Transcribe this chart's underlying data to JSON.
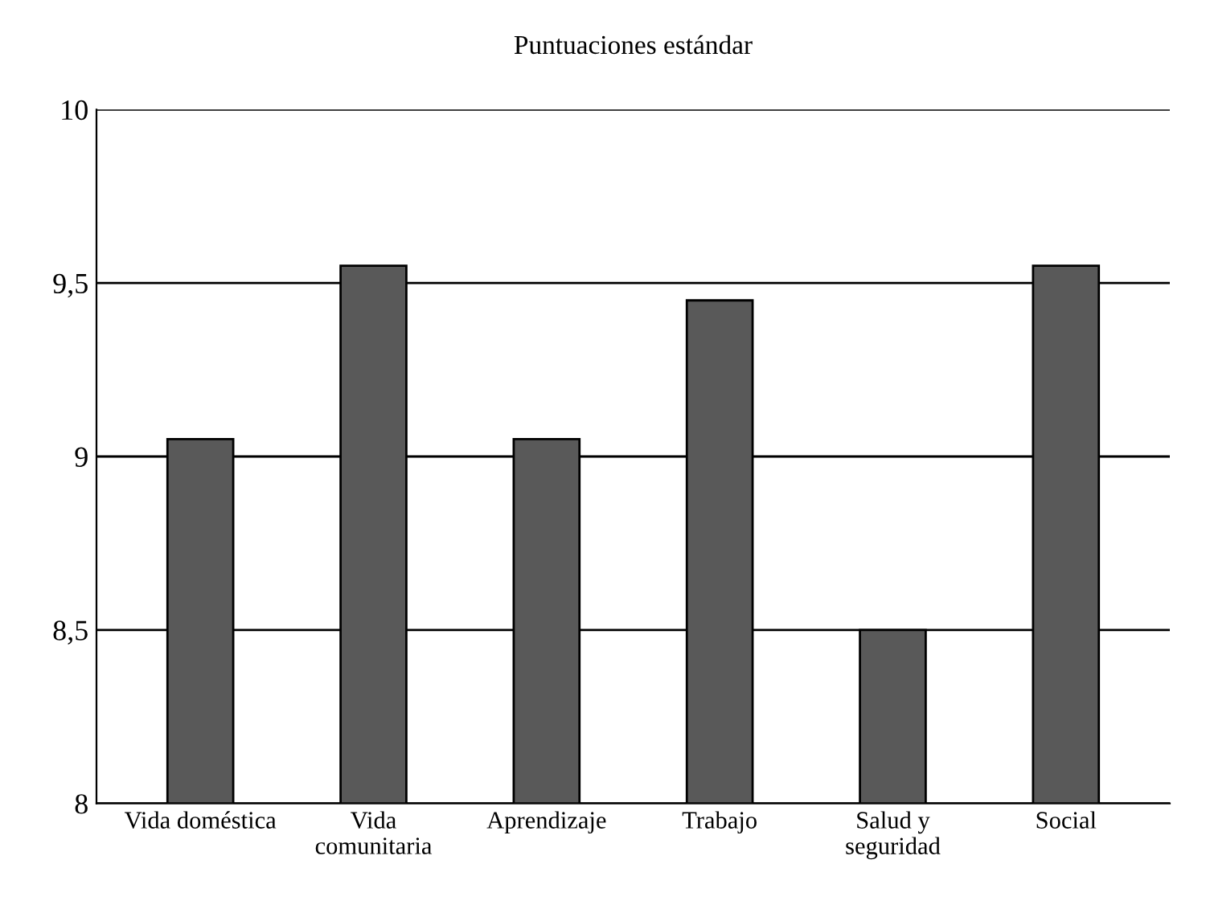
{
  "chart_data": {
    "type": "bar",
    "title": "Puntuaciones estándar",
    "categories": [
      "Vida doméstica",
      "Vida\ncomunitaria",
      "Aprendizaje",
      "Trabajo",
      "Salud y\nseguridad",
      "Social"
    ],
    "values": [
      9.05,
      9.55,
      9.05,
      9.45,
      8.5,
      9.55
    ],
    "color": "#595959",
    "ylim": [
      8,
      10
    ],
    "yticks": [
      8,
      {
        "value": 8.5,
        "label": "8,5"
      },
      9,
      {
        "value": 9.5,
        "label": "9,5"
      },
      10
    ],
    "grid": "y"
  }
}
